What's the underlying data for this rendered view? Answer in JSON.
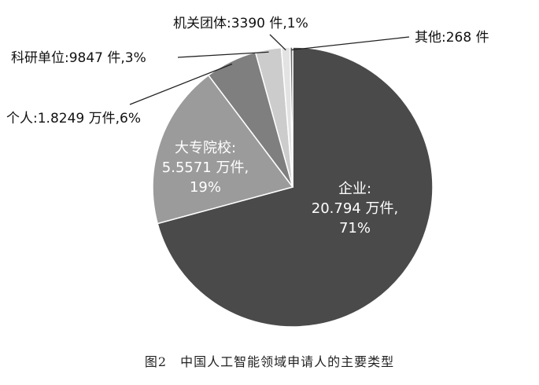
{
  "chart_data": {
    "type": "pie",
    "title": "",
    "caption": "图2　中国人工智能领域申请人的主要类型",
    "slices": [
      {
        "key": "enterprise",
        "name": "企业",
        "amount": "20.794万件",
        "percent": "71%",
        "value": 71,
        "color": "#4a4a4a",
        "line1": "企业:",
        "line2": "20.794 万件,",
        "line3": "71%"
      },
      {
        "key": "university",
        "name": "大专院校",
        "amount": "5.5571万件",
        "percent": "19%",
        "value": 19,
        "color": "#9b9b9b",
        "line1": "大专院校:",
        "line2": "5.5571 万件,",
        "line3": "19%"
      },
      {
        "key": "individual",
        "name": "个人",
        "amount": "1.8249万件",
        "percent": "6%",
        "value": 6,
        "color": "#7f7f7f",
        "label": "个人:1.8249 万件,6%"
      },
      {
        "key": "research",
        "name": "科研单位",
        "amount": "9847件",
        "percent": "3%",
        "value": 3,
        "color": "#cccccc",
        "label": "科研单位:9847 件,3%"
      },
      {
        "key": "agency",
        "name": "机关团体",
        "amount": "3390件",
        "percent": "1%",
        "value": 1,
        "color": "#e3e3e3",
        "label": "机关团体:3390 件,1%"
      },
      {
        "key": "other",
        "name": "其他",
        "amount": "268件",
        "value": 0.3,
        "color": "#6a6a6a",
        "label": "其他:268 件"
      }
    ]
  }
}
